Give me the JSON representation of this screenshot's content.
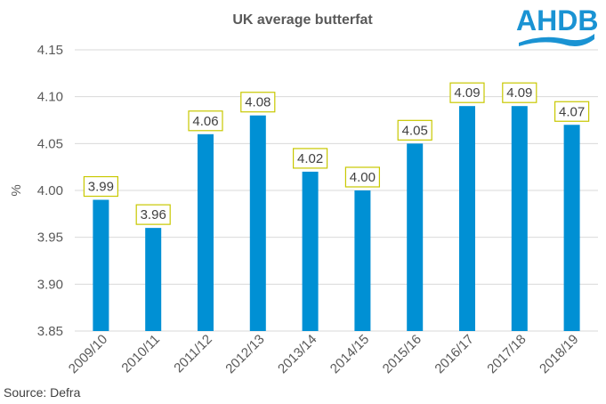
{
  "chart_data": {
    "type": "bar",
    "title": "UK average butterfat",
    "xlabel": "",
    "ylabel": "%",
    "ylim": [
      3.85,
      4.15
    ],
    "yticks": [
      "4.15",
      "4.10",
      "4.05",
      "4.00",
      "3.95",
      "3.90",
      "3.85"
    ],
    "ytick_values": [
      4.15,
      4.1,
      4.05,
      4.0,
      3.95,
      3.9,
      3.85
    ],
    "grid": true,
    "categories": [
      "2009/10",
      "2010/11",
      "2011/12",
      "2012/13",
      "2013/14",
      "2014/15",
      "2015/16",
      "2016/17",
      "2017/18",
      "2018/19"
    ],
    "values": [
      3.99,
      3.96,
      4.06,
      4.08,
      4.02,
      4.0,
      4.05,
      4.09,
      4.09,
      4.07
    ],
    "data_labels": [
      "3.99",
      "3.96",
      "4.06",
      "4.08",
      "4.02",
      "4.00",
      "4.05",
      "4.09",
      "4.09",
      "4.07"
    ],
    "bar_color": "#0090d4",
    "label_border_color": "#c8c800",
    "gridline_color": "#d9d9d9"
  },
  "source": "Source: Defra",
  "logo": {
    "text": "AHDB",
    "color": "#1a93d3"
  }
}
